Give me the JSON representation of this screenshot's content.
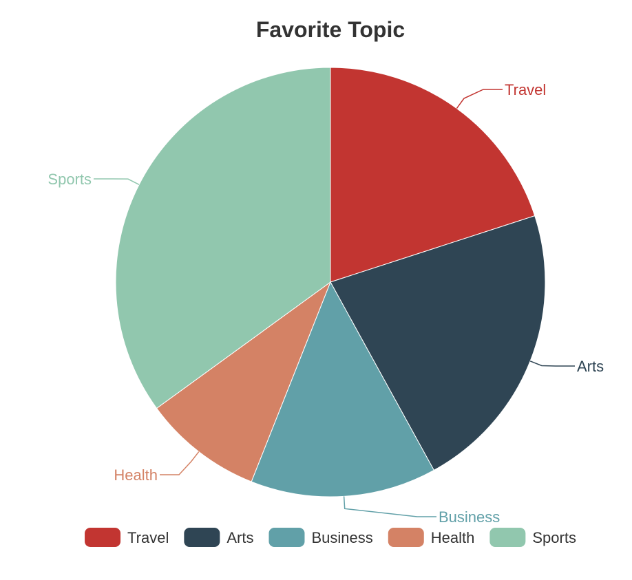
{
  "chart_data": {
    "type": "pie",
    "title": "Favorite Topic",
    "legend_position": "bottom",
    "slices": [
      {
        "label": "Travel",
        "value": 20,
        "color": "#c23531"
      },
      {
        "label": "Arts",
        "value": 22,
        "color": "#2f4554"
      },
      {
        "label": "Business",
        "value": 14,
        "color": "#61a0a8"
      },
      {
        "label": "Health",
        "value": 9,
        "color": "#d48265"
      },
      {
        "label": "Sports",
        "value": 35,
        "color": "#91c7ae"
      }
    ]
  }
}
